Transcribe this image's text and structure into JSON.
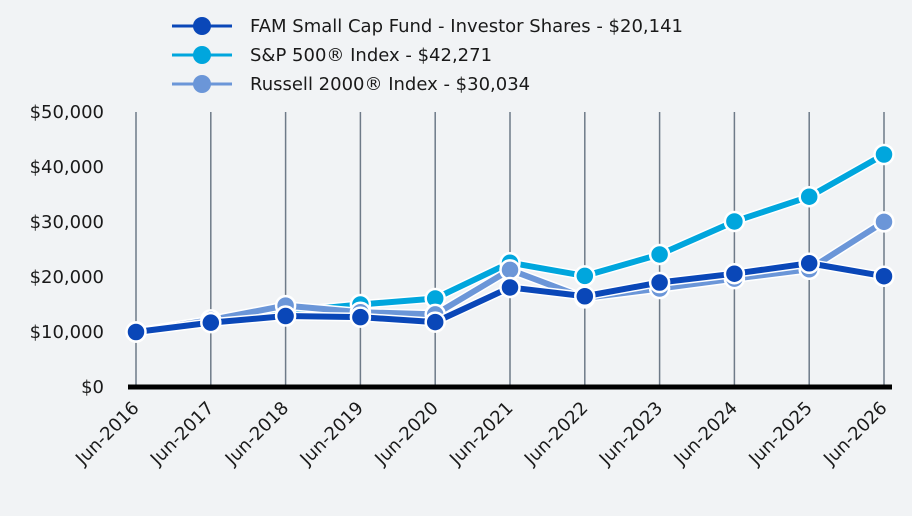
{
  "chart_data": {
    "type": "line",
    "categories": [
      "Jun-2016",
      "Jun-2017",
      "Jun-2018",
      "Jun-2019",
      "Jun-2020",
      "Jun-2021",
      "Jun-2022",
      "Jun-2023",
      "Jun-2024",
      "Jun-2025",
      "Jun-2026"
    ],
    "ylim": [
      0,
      50000
    ],
    "yticks": [
      0,
      10000,
      20000,
      30000,
      40000,
      50000
    ],
    "ytick_labels": [
      "$0",
      "$10,000",
      "$20,000",
      "$30,000",
      "$40,000",
      "$50,000"
    ],
    "grid": "vertical",
    "legend_position": "top",
    "series": [
      {
        "name": "FAM Small Cap Fund - Investor Shares - $20,141",
        "color": "#0a47b8",
        "values": [
          10000,
          11700,
          12900,
          12700,
          11800,
          18100,
          16500,
          19000,
          20600,
          22500,
          20141
        ]
      },
      {
        "name": "S&P 500® Index - $42,271",
        "color": "#00a6dd",
        "values": [
          10000,
          11800,
          13700,
          15000,
          16100,
          22600,
          20200,
          24100,
          30100,
          34600,
          42271
        ]
      },
      {
        "name": "Russell 2000® Index - $30,034",
        "color": "#6b96d8",
        "values": [
          10000,
          12200,
          14800,
          13600,
          13200,
          21300,
          16200,
          17900,
          19700,
          21400,
          30034
        ]
      }
    ]
  }
}
